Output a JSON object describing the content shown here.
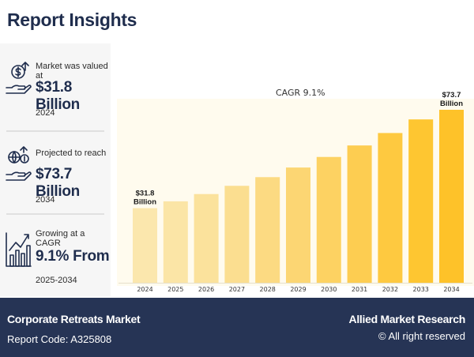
{
  "header": {
    "title": "Report Insights"
  },
  "stats": [
    {
      "caption": "Market was valued at",
      "value": "$31.8 Billion",
      "sub": "2024",
      "icon": "money-hand-icon"
    },
    {
      "caption": "Projected to reach",
      "value": "$73.7 Billion",
      "sub": "2034",
      "icon": "globe-hand-icon"
    },
    {
      "caption": "Growing at a CAGR",
      "value": "9.1% From",
      "sub": "2025-2034",
      "icon": "growth-chart-icon"
    }
  ],
  "chart_data": {
    "type": "bar",
    "annotation": "CAGR 9.1%",
    "categories": [
      "2024",
      "2025",
      "2026",
      "2027",
      "2028",
      "2029",
      "2030",
      "2031",
      "2032",
      "2033",
      "2034"
    ],
    "values": [
      31.8,
      34.7,
      37.8,
      41.3,
      45.0,
      49.1,
      53.6,
      58.5,
      63.8,
      69.6,
      73.7
    ],
    "data_labels": [
      {
        "index": 0,
        "lines": [
          "$31.8",
          "Billion"
        ]
      },
      {
        "index": 10,
        "lines": [
          "$73.7",
          "Billion"
        ]
      }
    ],
    "colors": [
      "#fbe7ad",
      "#fbe5a6",
      "#fbe29c",
      "#fbde90",
      "#fcda82",
      "#fcd673",
      "#fdd262",
      "#fdcd51",
      "#fec940",
      "#fec631",
      "#fec229"
    ],
    "ylim": [
      0,
      78
    ],
    "grid": false,
    "legend": "none"
  },
  "footer": {
    "report_name": "Corporate Retreats Market",
    "report_code": "Report Code: A325808",
    "publisher": "Allied Market Research",
    "rights": "© All right reserved"
  }
}
